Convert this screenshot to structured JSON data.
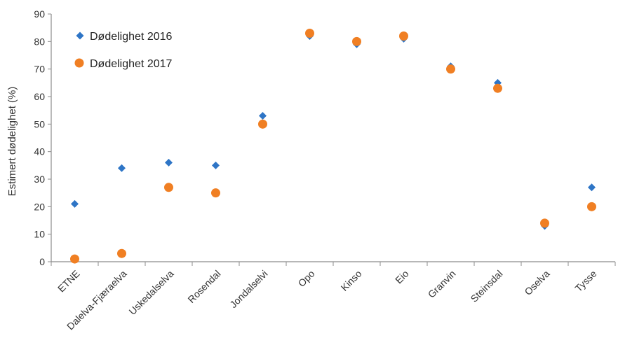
{
  "chart_data": {
    "type": "scatter",
    "ylabel": "Estimert dødelighet (%)",
    "xlabel": "",
    "ylim": [
      0,
      90
    ],
    "yticks": [
      0,
      10,
      20,
      30,
      40,
      50,
      60,
      70,
      80,
      90
    ],
    "grid": false,
    "legend_position": "top-left",
    "categories": [
      "ETNE",
      "Dalelva-Fjæraelva",
      "Uskedalselva",
      "Rosendal",
      "Jondalselvi",
      "Opo",
      "Kinso",
      "Eio",
      "Granvin",
      "Steinsdal",
      "Oselva",
      "Tysse"
    ],
    "series": [
      {
        "name": "Dødelighet 2016",
        "marker": "diamond",
        "color": "#2e75c6",
        "values": [
          21,
          34,
          36,
          35,
          53,
          82,
          79,
          81,
          71,
          65,
          13,
          27
        ]
      },
      {
        "name": "Dødelighet 2017",
        "marker": "circle",
        "color": "#f07f23",
        "values": [
          1,
          3,
          27,
          25,
          50,
          83,
          80,
          82,
          70,
          63,
          14,
          20
        ]
      }
    ]
  }
}
